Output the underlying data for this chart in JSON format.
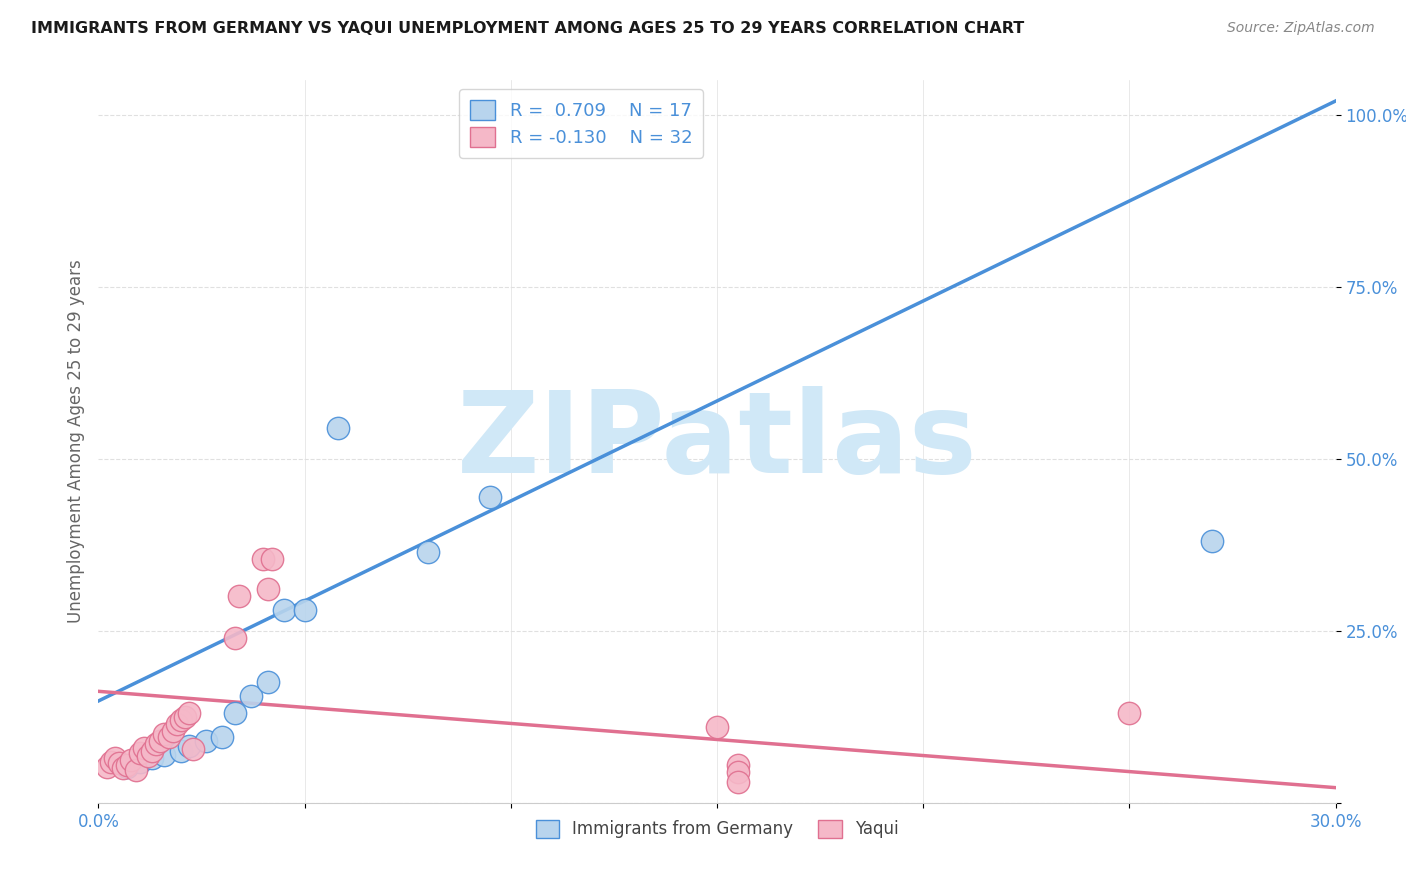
{
  "title": "IMMIGRANTS FROM GERMANY VS YAQUI UNEMPLOYMENT AMONG AGES 25 TO 29 YEARS CORRELATION CHART",
  "source": "Source: ZipAtlas.com",
  "ylabel": "Unemployment Among Ages 25 to 29 years",
  "xlim": [
    0.0,
    0.3
  ],
  "ylim": [
    0.0,
    1.05
  ],
  "xticks": [
    0.0,
    0.05,
    0.1,
    0.15,
    0.2,
    0.25,
    0.3
  ],
  "xticklabels": [
    "0.0%",
    "",
    "",
    "",
    "",
    "",
    "30.0%"
  ],
  "yticks": [
    0.0,
    0.25,
    0.5,
    0.75,
    1.0
  ],
  "yticklabels": [
    "",
    "25.0%",
    "50.0%",
    "75.0%",
    "100.0%"
  ],
  "blue_fill": "#b8d4ed",
  "blue_edge": "#4a90d9",
  "pink_fill": "#f5b8c8",
  "pink_edge": "#e07090",
  "blue_line_color": "#4a90d9",
  "pink_line_color": "#e07090",
  "R_blue": "0.709",
  "N_blue": "17",
  "R_pink": "-0.130",
  "N_pink": "32",
  "blue_line_x0": 0.0,
  "blue_line_y0": 0.148,
  "blue_line_x1": 0.3,
  "blue_line_y1": 1.02,
  "pink_line_x0": 0.0,
  "pink_line_y0": 0.162,
  "pink_line_x1": 0.3,
  "pink_line_y1": 0.022,
  "blue_scatter_x": [
    0.007,
    0.01,
    0.013,
    0.016,
    0.02,
    0.022,
    0.026,
    0.03,
    0.033,
    0.037,
    0.041,
    0.045,
    0.05,
    0.058,
    0.08,
    0.095,
    0.27
  ],
  "blue_scatter_y": [
    0.052,
    0.06,
    0.065,
    0.07,
    0.075,
    0.082,
    0.09,
    0.095,
    0.13,
    0.155,
    0.175,
    0.28,
    0.28,
    0.545,
    0.365,
    0.445,
    0.38
  ],
  "pink_scatter_x": [
    0.002,
    0.003,
    0.004,
    0.005,
    0.006,
    0.007,
    0.008,
    0.009,
    0.01,
    0.011,
    0.012,
    0.013,
    0.014,
    0.015,
    0.016,
    0.017,
    0.018,
    0.019,
    0.02,
    0.021,
    0.022,
    0.023,
    0.033,
    0.034,
    0.04,
    0.041,
    0.042,
    0.15,
    0.155,
    0.155,
    0.25,
    0.155
  ],
  "pink_scatter_y": [
    0.052,
    0.06,
    0.065,
    0.058,
    0.05,
    0.055,
    0.062,
    0.048,
    0.072,
    0.08,
    0.068,
    0.075,
    0.085,
    0.09,
    0.1,
    0.095,
    0.105,
    0.115,
    0.12,
    0.125,
    0.13,
    0.078,
    0.24,
    0.3,
    0.355,
    0.31,
    0.355,
    0.11,
    0.055,
    0.045,
    0.13,
    0.03
  ],
  "watermark_text": "ZIPatlas",
  "watermark_color": "#d0e8f7",
  "bg_color": "#ffffff",
  "grid_color": "#e0e0e0",
  "tick_color": "#4a90d9",
  "label_color": "#666666"
}
